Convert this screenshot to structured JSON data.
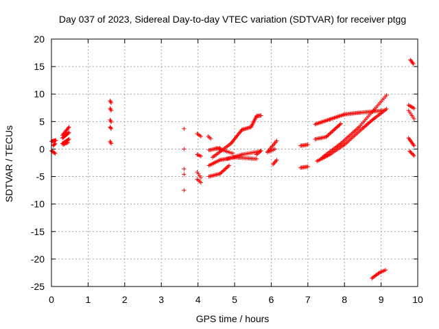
{
  "chart_data": {
    "type": "scatter",
    "title": "Day 037 of 2023, Sidereal Day-to-day VTEC variation (SDTVAR) for receiver ptgg",
    "xlabel": "GPS time / hours",
    "ylabel": "SDTVAR / TECUs",
    "xlim": [
      0,
      10
    ],
    "ylim": [
      -25,
      20
    ],
    "x_ticks": [
      "0",
      "1",
      "2",
      "3",
      "4",
      "5",
      "6",
      "7",
      "8",
      "9",
      "10"
    ],
    "y_ticks": [
      "-25",
      "-20",
      "-15",
      "-10",
      "-5",
      "0",
      "5",
      "10",
      "15",
      "20"
    ],
    "grid": true,
    "marker": "plus",
    "color": "#ff0000",
    "segments": [
      {
        "x0": 0.0,
        "y0": 1.4,
        "x1": 0.12,
        "y1": 1.6,
        "n": 8
      },
      {
        "x0": 0.0,
        "y0": -0.3,
        "x1": 0.1,
        "y1": -0.8,
        "n": 6
      },
      {
        "x0": 0.05,
        "y0": 0.6,
        "x1": 0.1,
        "y1": 1.0,
        "n": 4
      },
      {
        "x0": 0.3,
        "y0": 2.5,
        "x1": 0.48,
        "y1": 4.0,
        "n": 10
      },
      {
        "x0": 0.3,
        "y0": 2.0,
        "x1": 0.48,
        "y1": 3.0,
        "n": 10
      },
      {
        "x0": 0.3,
        "y0": 1.0,
        "x1": 0.48,
        "y1": 1.8,
        "n": 10
      },
      {
        "x0": 0.32,
        "y0": 0.8,
        "x1": 0.45,
        "y1": 1.2,
        "n": 6
      },
      {
        "x0": 1.6,
        "y0": 8.8,
        "x1": 1.63,
        "y1": 8.4,
        "n": 3
      },
      {
        "x0": 1.6,
        "y0": 7.4,
        "x1": 1.63,
        "y1": 7.0,
        "n": 3
      },
      {
        "x0": 1.6,
        "y0": 5.3,
        "x1": 1.63,
        "y1": 4.9,
        "n": 3
      },
      {
        "x0": 1.6,
        "y0": 4.0,
        "x1": 1.63,
        "y1": 3.7,
        "n": 3
      },
      {
        "x0": 1.6,
        "y0": 1.4,
        "x1": 1.63,
        "y1": 1.0,
        "n": 3
      },
      {
        "x0": 3.98,
        "y0": 2.8,
        "x1": 4.08,
        "y1": 2.3,
        "n": 4
      },
      {
        "x0": 3.98,
        "y0": -1.0,
        "x1": 4.08,
        "y1": -1.3,
        "n": 4
      },
      {
        "x0": 3.98,
        "y0": -4.2,
        "x1": 4.08,
        "y1": -5.2,
        "n": 4
      },
      {
        "x0": 3.98,
        "y0": -5.5,
        "x1": 4.08,
        "y1": -6.1,
        "n": 4
      },
      {
        "x0": 4.28,
        "y0": 2.3,
        "x1": 4.35,
        "y1": 1.9,
        "n": 3
      },
      {
        "x0": 4.3,
        "y0": -0.2,
        "x1": 4.6,
        "y1": 0.2,
        "n": 10
      },
      {
        "x0": 4.3,
        "y0": -3.0,
        "x1": 4.6,
        "y1": -2.0,
        "n": 10
      },
      {
        "x0": 4.3,
        "y0": -5.0,
        "x1": 4.6,
        "y1": -4.5,
        "n": 10
      },
      {
        "x0": 4.6,
        "y0": -4.5,
        "x1": 4.85,
        "y1": -3.0,
        "n": 10
      },
      {
        "x0": 4.4,
        "y0": -1.5,
        "x1": 4.9,
        "y1": 1.0,
        "n": 16
      },
      {
        "x0": 4.9,
        "y0": 1.0,
        "x1": 5.2,
        "y1": 3.5,
        "n": 14
      },
      {
        "x0": 5.2,
        "y0": 3.5,
        "x1": 5.45,
        "y1": 4.0,
        "n": 10
      },
      {
        "x0": 5.45,
        "y0": 4.0,
        "x1": 5.6,
        "y1": 6.0,
        "n": 10
      },
      {
        "x0": 5.6,
        "y0": 6.0,
        "x1": 5.72,
        "y1": 6.1,
        "n": 6
      },
      {
        "x0": 4.6,
        "y0": -2.0,
        "x1": 5.0,
        "y1": -1.5,
        "n": 14
      },
      {
        "x0": 5.0,
        "y0": -1.5,
        "x1": 5.6,
        "y1": -1.8,
        "n": 18
      },
      {
        "x0": 4.8,
        "y0": -1.8,
        "x1": 5.2,
        "y1": -1.0,
        "n": 12
      },
      {
        "x0": 5.2,
        "y0": -1.0,
        "x1": 5.7,
        "y1": -0.4,
        "n": 14
      },
      {
        "x0": 4.5,
        "y0": 0.2,
        "x1": 4.95,
        "y1": -0.8,
        "n": 12
      },
      {
        "x0": 5.6,
        "y0": -1.0,
        "x1": 5.72,
        "y1": -0.3,
        "n": 5
      },
      {
        "x0": 5.9,
        "y0": -0.5,
        "x1": 6.15,
        "y1": 1.5,
        "n": 10
      },
      {
        "x0": 5.9,
        "y0": -0.6,
        "x1": 6.1,
        "y1": 0.0,
        "n": 6
      },
      {
        "x0": 6.05,
        "y0": -2.8,
        "x1": 6.15,
        "y1": -2.0,
        "n": 5
      },
      {
        "x0": 6.8,
        "y0": 0.6,
        "x1": 7.0,
        "y1": 0.8,
        "n": 8
      },
      {
        "x0": 6.8,
        "y0": -3.4,
        "x1": 7.0,
        "y1": -3.2,
        "n": 8
      },
      {
        "x0": 7.2,
        "y0": 4.5,
        "x1": 7.6,
        "y1": 5.4,
        "n": 14
      },
      {
        "x0": 7.6,
        "y0": 5.4,
        "x1": 8.0,
        "y1": 6.3,
        "n": 14
      },
      {
        "x0": 8.0,
        "y0": 6.3,
        "x1": 8.4,
        "y1": 6.6,
        "n": 14
      },
      {
        "x0": 8.4,
        "y0": 6.6,
        "x1": 9.05,
        "y1": 7.0,
        "n": 20
      },
      {
        "x0": 7.2,
        "y0": 1.8,
        "x1": 7.5,
        "y1": 2.2,
        "n": 10
      },
      {
        "x0": 7.5,
        "y0": 2.2,
        "x1": 7.8,
        "y1": 4.0,
        "n": 12
      },
      {
        "x0": 7.8,
        "y0": 4.0,
        "x1": 7.9,
        "y1": 4.6,
        "n": 5
      },
      {
        "x0": 7.25,
        "y0": -2.2,
        "x1": 7.6,
        "y1": -1.0,
        "n": 12
      },
      {
        "x0": 7.6,
        "y0": -1.0,
        "x1": 8.0,
        "y1": 0.8,
        "n": 12
      },
      {
        "x0": 8.0,
        "y0": 0.8,
        "x1": 8.5,
        "y1": 3.8,
        "n": 16
      },
      {
        "x0": 8.5,
        "y0": 3.8,
        "x1": 8.8,
        "y1": 5.5,
        "n": 12
      },
      {
        "x0": 8.8,
        "y0": 5.5,
        "x1": 9.15,
        "y1": 7.3,
        "n": 12
      },
      {
        "x0": 7.4,
        "y0": -1.5,
        "x1": 7.9,
        "y1": 1.0,
        "n": 16
      },
      {
        "x0": 7.9,
        "y0": 1.0,
        "x1": 8.4,
        "y1": 4.0,
        "n": 16
      },
      {
        "x0": 8.4,
        "y0": 4.0,
        "x1": 9.15,
        "y1": 9.8,
        "n": 22
      },
      {
        "x0": 8.75,
        "y0": -23.5,
        "x1": 8.95,
        "y1": -22.5,
        "n": 8
      },
      {
        "x0": 8.95,
        "y0": -22.5,
        "x1": 9.12,
        "y1": -22.0,
        "n": 6
      },
      {
        "x0": 9.8,
        "y0": 16.2,
        "x1": 9.88,
        "y1": 15.5,
        "n": 5
      },
      {
        "x0": 9.75,
        "y0": 8.0,
        "x1": 9.9,
        "y1": 7.4,
        "n": 6
      },
      {
        "x0": 9.75,
        "y0": 7.0,
        "x1": 9.9,
        "y1": 5.5,
        "n": 6
      },
      {
        "x0": 9.75,
        "y0": 2.0,
        "x1": 9.9,
        "y1": 0.6,
        "n": 8
      },
      {
        "x0": 9.78,
        "y0": -0.4,
        "x1": 9.9,
        "y1": -1.2,
        "n": 6
      }
    ],
    "points": [
      {
        "x": 3.62,
        "y": 3.7
      },
      {
        "x": 3.62,
        "y": 0.0
      },
      {
        "x": 3.62,
        "y": -3.6
      },
      {
        "x": 3.62,
        "y": -4.6
      },
      {
        "x": 3.62,
        "y": -7.5
      }
    ]
  }
}
